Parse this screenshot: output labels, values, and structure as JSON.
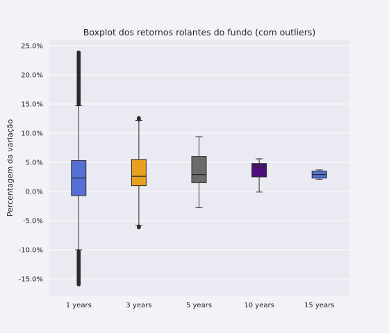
{
  "chart_data": {
    "type": "boxplot",
    "title": "Boxplot dos retornos rolantes do fundo (com outliers)",
    "xlabel": "",
    "ylabel": "Percentagem da variação",
    "ylim": [
      -18.0,
      26.0
    ],
    "y_ticks": [
      "25.0%",
      "20.0%",
      "15.0%",
      "10.0%",
      "5.0%",
      "0.0%",
      "-5.0%",
      "-10.0%",
      "-15.0%"
    ],
    "y_tick_values": [
      25,
      20,
      15,
      10,
      5,
      0,
      -5,
      -10,
      -15
    ],
    "grid": true,
    "categories": [
      "1 years",
      "3 years",
      "5 years",
      "10 years",
      "15 years"
    ],
    "boxes": [
      {
        "category": "1 years",
        "color": "#5470d6",
        "whisker_low": -10.0,
        "q1": -0.7,
        "median": 2.3,
        "q3": 5.3,
        "whisker_high": 14.7,
        "outliers_low_range": [
          -16.0,
          -10.2
        ],
        "outliers_high_range": [
          14.9,
          24.0
        ]
      },
      {
        "category": "3 years",
        "color": "#e8a020",
        "whisker_low": -5.8,
        "q1": 1.0,
        "median": 2.6,
        "q3": 5.5,
        "whisker_high": 12.2,
        "outliers_low_range": [
          -6.2,
          -5.9
        ],
        "outliers_high_range": [
          12.3,
          12.7
        ]
      },
      {
        "category": "5 years",
        "color": "#6b6b6b",
        "whisker_low": -2.8,
        "q1": 1.5,
        "median": 2.9,
        "q3": 6.0,
        "whisker_high": 9.4
      },
      {
        "category": "10 years",
        "color": "#4b0f7a",
        "whisker_low": -0.1,
        "q1": 2.5,
        "median": 4.2,
        "q3": 4.8,
        "whisker_high": 5.6
      },
      {
        "category": "15 years",
        "color": "#5470d6",
        "whisker_low": 2.1,
        "q1": 2.3,
        "median": 2.9,
        "q3": 3.5,
        "whisker_high": 3.7
      }
    ]
  }
}
